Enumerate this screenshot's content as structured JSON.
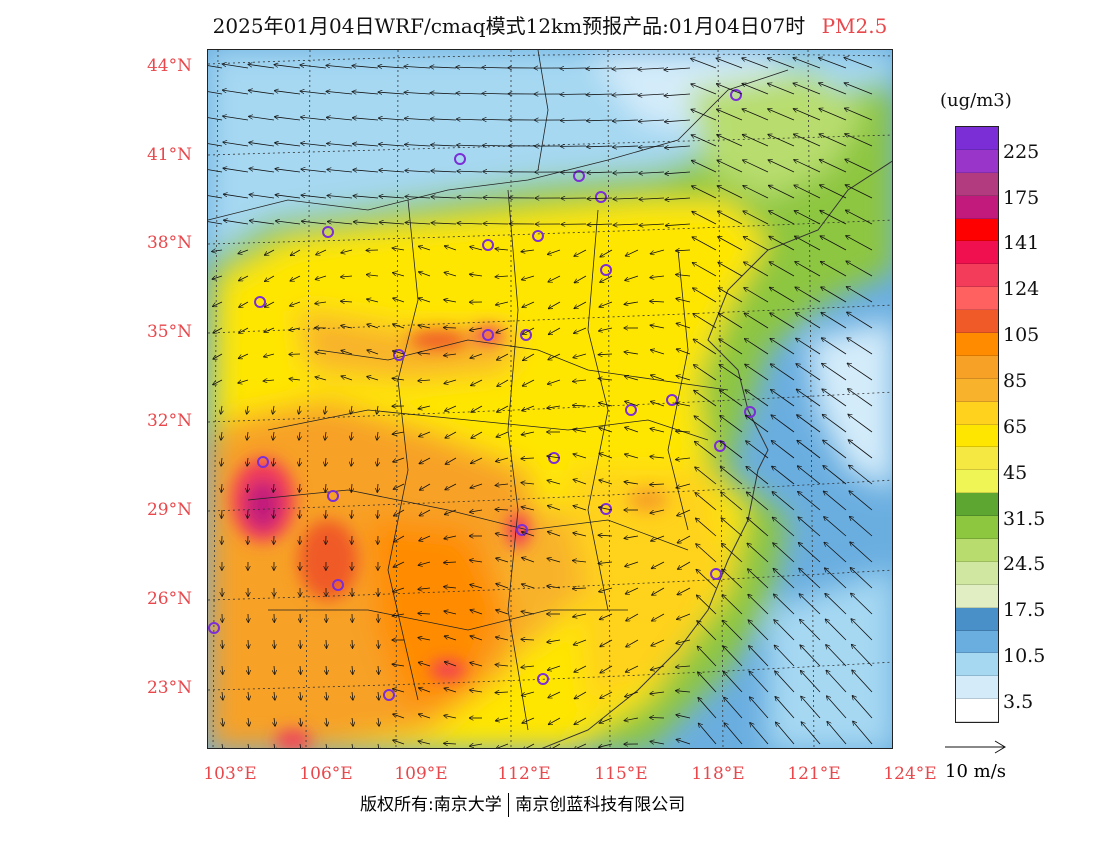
{
  "title": {
    "main": "2025年01月04日WRF/cmaq模式12km预报产品:01月04日07时",
    "pollutant": "PM2.5"
  },
  "axes": {
    "lat_labels": [
      "44°N",
      "41°N",
      "38°N",
      "35°N",
      "32°N",
      "29°N",
      "26°N",
      "23°N"
    ],
    "lon_labels": [
      "103°E",
      "106°E",
      "109°E",
      "112°E",
      "115°E",
      "118°E",
      "121°E",
      "124°E"
    ]
  },
  "colorbar": {
    "unit": "(ug/m3)",
    "labels": [
      "225",
      "175",
      "141",
      "124",
      "105",
      "85",
      "65",
      "45",
      "31.5",
      "24.5",
      "17.5",
      "10.5",
      "3.5"
    ],
    "colors": [
      "#7b2ed6",
      "#9a35c9",
      "#b23a7e",
      "#c21a7c",
      "#ff0000",
      "#f01050",
      "#f23c5a",
      "#ff6060",
      "#f05a28",
      "#ff8c00",
      "#f7a126",
      "#f8b22b",
      "#ffd21e",
      "#ffe600",
      "#f5e842",
      "#eef554",
      "#5ea632",
      "#8dc63f",
      "#b8dd6e",
      "#cfe7a1",
      "#e1eec4",
      "#4a90c8",
      "#6aaee0",
      "#a6d8f2",
      "#d4ecfa",
      "#ffffff"
    ]
  },
  "wind_legend": {
    "label": "10 m/s"
  },
  "footer": {
    "left": "版权所有:南京大学",
    "right": "南京创蓝科技有限公司"
  }
}
